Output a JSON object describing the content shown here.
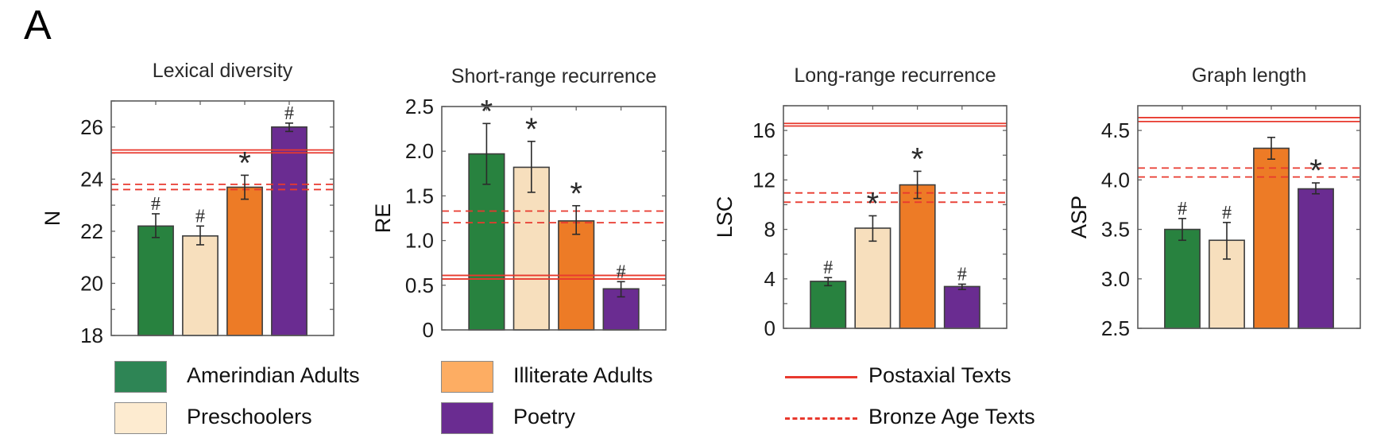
{
  "figure": {
    "panel_letter": "A"
  },
  "legend": {
    "groups": [
      {
        "label": "Amerindian Adults",
        "color": "#2e8555"
      },
      {
        "label": "Preschoolers",
        "color": "#fdebd0"
      },
      {
        "label": "Illiterate Adults",
        "color": "#fdad63"
      },
      {
        "label": "Poetry",
        "color": "#6a2c91"
      }
    ],
    "references": [
      {
        "label": "Postaxial Texts",
        "color": "#e8392e",
        "style": "solid"
      },
      {
        "label": "Bronze Age Texts",
        "color": "#e8392e",
        "style": "dashed"
      }
    ]
  },
  "chart_data": [
    {
      "type": "bar",
      "title": "Lexical diversity",
      "xlabel": "",
      "ylabel": "N",
      "ylim": [
        18,
        27
      ],
      "yticks": [
        18,
        20,
        22,
        24,
        26
      ],
      "yminor_step": 1,
      "categories": [
        "Amerindian Adults",
        "Preschoolers",
        "Illiterate Adults",
        "Poetry"
      ],
      "bar_colors": [
        "#28823f",
        "#f7dfbd",
        "#ed7b26",
        "#6a2c91"
      ],
      "values": [
        22.2,
        21.82,
        23.69,
        26.0
      ],
      "error_low": [
        21.76,
        21.48,
        23.23,
        25.83
      ],
      "error_high": [
        22.67,
        22.2,
        24.15,
        26.15
      ],
      "annotations": [
        "#",
        "#",
        "*",
        "#"
      ],
      "reference_lines": {
        "Postaxial Texts": [
          25.01,
          25.12
        ],
        "Bronze Age Texts": [
          23.6,
          23.8
        ]
      }
    },
    {
      "type": "bar",
      "title": "Short-range recurrence",
      "xlabel": "",
      "ylabel": "RE",
      "ylim": [
        0,
        2.5
      ],
      "yticks": [
        "0",
        "0.5",
        "1.0",
        "1.5",
        "2.0",
        "2.5"
      ],
      "yminor_step": 0.5,
      "categories": [
        "Amerindian Adults",
        "Preschoolers",
        "Illiterate Adults",
        "Poetry"
      ],
      "bar_colors": [
        "#28823f",
        "#f7dfbd",
        "#ed7b26",
        "#6a2c91"
      ],
      "values": [
        1.97,
        1.82,
        1.22,
        0.46
      ],
      "error_low": [
        1.63,
        1.54,
        1.07,
        0.37
      ],
      "error_high": [
        2.31,
        2.11,
        1.39,
        0.54
      ],
      "annotations": [
        "*",
        "*",
        "*",
        "#"
      ],
      "reference_lines": {
        "Postaxial Texts": [
          0.57,
          0.61
        ],
        "Bronze Age Texts": [
          1.2,
          1.33
        ]
      }
    },
    {
      "type": "bar",
      "title": "Long-range recurrence",
      "xlabel": "",
      "ylabel": "LSC",
      "ylim": [
        0,
        18
      ],
      "yticks": [
        0,
        4,
        8,
        12,
        16
      ],
      "yminor_step": 2,
      "categories": [
        "Amerindian Adults",
        "Preschoolers",
        "Illiterate Adults",
        "Poetry"
      ],
      "bar_colors": [
        "#28823f",
        "#f7dfbd",
        "#ed7b26",
        "#6a2c91"
      ],
      "values": [
        3.8,
        8.1,
        11.6,
        3.38
      ],
      "error_low": [
        3.45,
        7.05,
        10.5,
        3.14
      ],
      "error_high": [
        4.1,
        9.1,
        12.7,
        3.57
      ],
      "annotations": [
        "#",
        "*",
        "*",
        "#"
      ],
      "reference_lines": {
        "Postaxial Texts": [
          16.36,
          16.57
        ],
        "Bronze Age Texts": [
          10.2,
          10.95
        ]
      }
    },
    {
      "type": "bar",
      "title": "Graph length",
      "xlabel": "",
      "ylabel": "ASP",
      "ylim": [
        2.5,
        4.75
      ],
      "yticks": [
        "2.5",
        "3.0",
        "3.5",
        "4.0",
        "4.5"
      ],
      "yminor_step": 0.5,
      "categories": [
        "Amerindian Adults",
        "Preschoolers",
        "Illiterate Adults",
        "Poetry"
      ],
      "bar_colors": [
        "#28823f",
        "#f7dfbd",
        "#ed7b26",
        "#6a2c91"
      ],
      "values": [
        3.5,
        3.39,
        4.32,
        3.91
      ],
      "error_low": [
        3.39,
        3.2,
        4.21,
        3.86
      ],
      "error_high": [
        3.61,
        3.57,
        4.43,
        3.97
      ],
      "annotations": [
        "#",
        "#",
        "",
        "*"
      ],
      "reference_lines": {
        "Postaxial Texts": [
          4.59,
          4.63
        ],
        "Bronze Age Texts": [
          4.03,
          4.12
        ]
      }
    }
  ]
}
